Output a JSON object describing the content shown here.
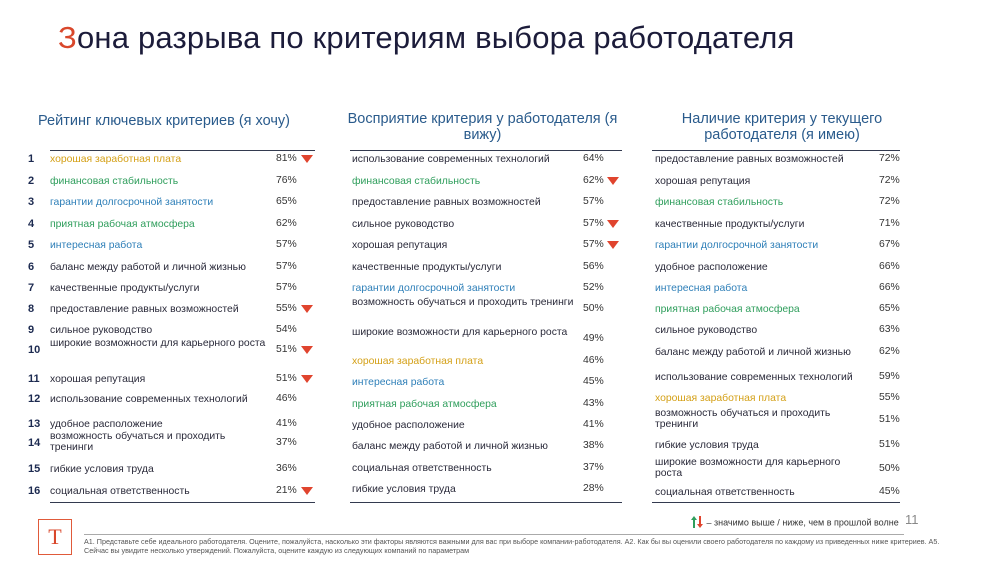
{
  "title_first": "З",
  "title_rest": "она разрыва по критериям выбора работодателя",
  "columns": [
    {
      "header": "Рейтинг ключевых критериев (я хочу)",
      "numbered": true,
      "rows": [
        {
          "n": "1",
          "label": "хорошая заработная плата",
          "pct": "81%",
          "color": "orange",
          "down": true
        },
        {
          "n": "2",
          "label": "финансовая стабильность",
          "pct": "76%",
          "color": "green",
          "down": false
        },
        {
          "n": "3",
          "label": "гарантии долгосрочной занятости",
          "pct": "65%",
          "color": "blue",
          "down": false
        },
        {
          "n": "4",
          "label": "приятная рабочая атмосфера",
          "pct": "62%",
          "color": "green",
          "down": false
        },
        {
          "n": "5",
          "label": "интересная работа",
          "pct": "57%",
          "color": "blue",
          "down": false
        },
        {
          "n": "6",
          "label": "баланс между работой и личной жизнью",
          "pct": "57%",
          "color": "normal",
          "down": false
        },
        {
          "n": "7",
          "label": "качественные продукты/услуги",
          "pct": "57%",
          "color": "normal",
          "down": false
        },
        {
          "n": "8",
          "label": "предоставление равных возможностей",
          "pct": "55%",
          "color": "normal",
          "down": true
        },
        {
          "n": "9",
          "label": "сильное руководство",
          "pct": "54%",
          "color": "normal",
          "down": false
        },
        {
          "n": "10",
          "label": "широкие возможности для карьерного роста",
          "pct": "51%",
          "color": "normal",
          "down": true
        },
        {
          "n": "11",
          "label": "хорошая репутация",
          "pct": "51%",
          "color": "normal",
          "down": true
        },
        {
          "n": "12",
          "label": "использование современных технологий",
          "pct": "46%",
          "color": "normal",
          "down": false
        },
        {
          "n": "13",
          "label": "удобное расположение",
          "pct": "41%",
          "color": "normal",
          "down": false
        },
        {
          "n": "14",
          "label": "возможность обучаться и проходить тренинги",
          "pct": "37%",
          "color": "normal",
          "down": false
        },
        {
          "n": "15",
          "label": "гибкие условия труда",
          "pct": "36%",
          "color": "normal",
          "down": false
        },
        {
          "n": "16",
          "label": "социальная ответственность",
          "pct": "21%",
          "color": "normal",
          "down": true
        }
      ]
    },
    {
      "header": "Восприятие критерия у работодателя (я вижу)",
      "numbered": false,
      "rows": [
        {
          "label": "использование современных технологий",
          "pct": "64%",
          "color": "normal",
          "down": false
        },
        {
          "label": "финансовая стабильность",
          "pct": "62%",
          "color": "green",
          "down": true
        },
        {
          "label": "предоставление равных возможностей",
          "pct": "57%",
          "color": "normal",
          "down": false
        },
        {
          "label": "сильное руководство",
          "pct": "57%",
          "color": "normal",
          "down": true
        },
        {
          "label": "хорошая репутация",
          "pct": "57%",
          "color": "normal",
          "down": true
        },
        {
          "label": "качественные продукты/услуги",
          "pct": "56%",
          "color": "normal",
          "down": false
        },
        {
          "label": "гарантии долгосрочной занятости",
          "pct": "52%",
          "color": "blue",
          "down": false
        },
        {
          "label": "возможность обучаться и проходить тренинги",
          "pct": "50%",
          "color": "normal",
          "down": false
        },
        {
          "label": "широкие возможности для карьерного роста",
          "pct": "49%",
          "color": "normal",
          "down": false
        },
        {
          "label": "хорошая заработная плата",
          "pct": "46%",
          "color": "orange",
          "down": false
        },
        {
          "label": "интересная работа",
          "pct": "45%",
          "color": "blue",
          "down": false
        },
        {
          "label": "приятная рабочая атмосфера",
          "pct": "43%",
          "color": "green",
          "down": false
        },
        {
          "label": "удобное расположение",
          "pct": "41%",
          "color": "normal",
          "down": false
        },
        {
          "label": "баланс между работой и личной жизнью",
          "pct": "38%",
          "color": "normal",
          "down": false
        },
        {
          "label": "социальная ответственность",
          "pct": "37%",
          "color": "normal",
          "down": false
        },
        {
          "label": "гибкие условия труда",
          "pct": "28%",
          "color": "normal",
          "down": false
        }
      ]
    },
    {
      "header": "Наличие критерия у текущего работодателя (я имею)",
      "numbered": false,
      "rows": [
        {
          "label": "предоставление равных возможностей",
          "pct": "72%",
          "color": "normal",
          "down": false
        },
        {
          "label": "хорошая репутация",
          "pct": "72%",
          "color": "normal",
          "down": false
        },
        {
          "label": "финансовая стабильность",
          "pct": "72%",
          "color": "green",
          "down": false
        },
        {
          "label": "качественные продукты/услуги",
          "pct": "71%",
          "color": "normal",
          "down": false
        },
        {
          "label": "гарантии долгосрочной занятости",
          "pct": "67%",
          "color": "blue",
          "down": false
        },
        {
          "label": "удобное расположение",
          "pct": "66%",
          "color": "normal",
          "down": false
        },
        {
          "label": "интересная работа",
          "pct": "66%",
          "color": "blue",
          "down": false
        },
        {
          "label": "приятная рабочая атмосфера",
          "pct": "65%",
          "color": "green",
          "down": false
        },
        {
          "label": "сильное руководство",
          "pct": "63%",
          "color": "normal",
          "down": false
        },
        {
          "label": "баланс между работой и личной жизнью",
          "pct": "62%",
          "color": "normal",
          "down": false
        },
        {
          "label": "использование современных технологий",
          "pct": "59%",
          "color": "normal",
          "down": false
        },
        {
          "label": "хорошая заработная плата",
          "pct": "55%",
          "color": "orange",
          "down": false
        },
        {
          "label": "возможность обучаться и проходить тренинги",
          "pct": "51%",
          "color": "normal",
          "down": false
        },
        {
          "label": "гибкие условия труда",
          "pct": "51%",
          "color": "normal",
          "down": false
        },
        {
          "label": "широкие возможности для карьерного роста",
          "pct": "50%",
          "color": "normal",
          "down": false
        },
        {
          "label": "социальная ответственность",
          "pct": "45%",
          "color": "normal",
          "down": false
        }
      ]
    }
  ],
  "legend_text": "– значимо выше / ниже, чем в прошлой волне",
  "page_number": "11",
  "logo_letter": "Т",
  "footnote": "А1. Представьте себе идеального работодателя. Оцените, пожалуйста, насколько эти факторы являются важными для вас при выборе компании-работодателя.  А2. Как бы вы оценили своего работодателя по каждому из приведенных ниже критериев.  А5. Сейчас вы увидите несколько утверждений. Пожалуйста, оцените каждую из следующих компаний по параметрам"
}
